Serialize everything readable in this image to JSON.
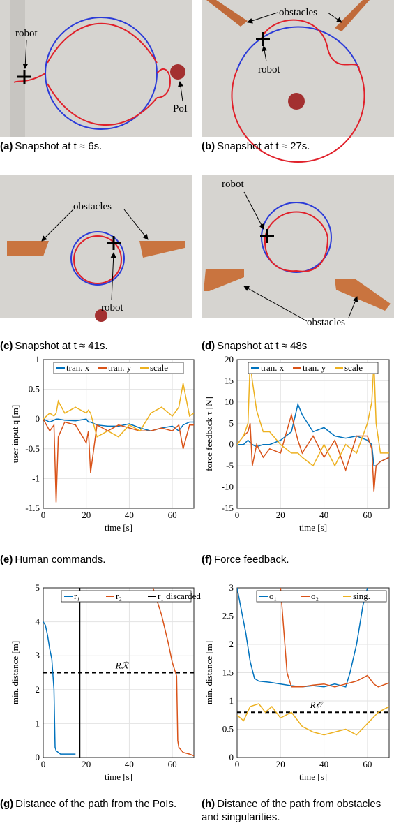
{
  "snapshots": [
    {
      "label": "(a)",
      "caption": "Snapshot at t ≈ 6s.",
      "annotations": [
        "robot",
        "PoI"
      ]
    },
    {
      "label": "(b)",
      "caption": "Snapshot at t ≈ 27s.",
      "annotations": [
        "obstacles",
        "robot"
      ]
    },
    {
      "label": "(c)",
      "caption": "Snapshot at t ≈ 41s.",
      "annotations": [
        "obstacles",
        "robot"
      ]
    },
    {
      "label": "(d)",
      "caption": "Snapshot at t ≈ 48s",
      "annotations": [
        "robot",
        "obstacles"
      ]
    }
  ],
  "chart_data": [
    {
      "type": "line",
      "label": "(e)",
      "caption": "Human commands.",
      "xlabel": "time [s]",
      "ylabel": "user input q [m]",
      "xlim": [
        0,
        70
      ],
      "xticks": [
        0,
        20,
        40,
        60
      ],
      "ylim": [
        -1.5,
        1
      ],
      "yticks": [
        -1.5,
        -1,
        -0.5,
        0,
        0.5,
        1
      ],
      "grid": true,
      "legend": "top",
      "x": [
        0,
        3,
        5,
        6,
        7,
        10,
        15,
        20,
        21,
        22,
        25,
        30,
        35,
        40,
        45,
        50,
        55,
        60,
        63,
        65,
        68,
        70
      ],
      "series": [
        {
          "name": "tran. x",
          "color": "#0072bd",
          "values": [
            0,
            -0.05,
            -0.02,
            0,
            0,
            -0.02,
            -0.03,
            0,
            -0.05,
            -0.05,
            -0.1,
            -0.12,
            -0.12,
            -0.08,
            -0.15,
            -0.2,
            -0.15,
            -0.12,
            -0.2,
            -0.1,
            -0.05,
            -0.05
          ]
        },
        {
          "name": "tran. y",
          "color": "#d95319",
          "values": [
            0,
            -0.2,
            -0.1,
            -1.4,
            -0.3,
            -0.05,
            -0.1,
            -0.4,
            -0.2,
            -0.9,
            -0.1,
            -0.2,
            -0.1,
            -0.15,
            -0.2,
            -0.2,
            -0.15,
            -0.2,
            -0.1,
            -0.5,
            -0.1,
            -0.1
          ]
        },
        {
          "name": "scale",
          "color": "#edb120",
          "values": [
            0,
            0.1,
            0.05,
            0.1,
            0.3,
            0.1,
            0.2,
            0.1,
            0.15,
            0.1,
            -0.3,
            -0.2,
            -0.3,
            -0.1,
            -0.2,
            0.1,
            0.2,
            0.05,
            0.2,
            0.6,
            0.05,
            0.1
          ]
        }
      ]
    },
    {
      "type": "line",
      "label": "(f)",
      "caption": "Force feedback.",
      "xlabel": "time [s]",
      "ylabel": "force feedback τ [N]",
      "xlim": [
        0,
        70
      ],
      "xticks": [
        0,
        20,
        40,
        60
      ],
      "ylim": [
        -15,
        20
      ],
      "yticks": [
        -15,
        -10,
        -5,
        0,
        5,
        10,
        15,
        20
      ],
      "grid": true,
      "legend": "top",
      "x": [
        0,
        3,
        5,
        6,
        7,
        9,
        12,
        15,
        20,
        25,
        28,
        30,
        35,
        40,
        45,
        50,
        55,
        60,
        62,
        63,
        64,
        66,
        70
      ],
      "series": [
        {
          "name": "tran. x",
          "color": "#0072bd",
          "values": [
            0,
            0,
            1,
            0.5,
            0,
            -0.5,
            0,
            0,
            1,
            3,
            9.5,
            7,
            3,
            4,
            2,
            1.5,
            2,
            1,
            0,
            -5,
            -5,
            -4,
            -3
          ]
        },
        {
          "name": "tran. y",
          "color": "#d95319",
          "values": [
            0,
            2,
            3,
            5,
            -5,
            0,
            -3,
            -1,
            -2,
            7,
            1,
            -2,
            2,
            -3,
            1,
            -6,
            2,
            2,
            -1,
            -11,
            -5,
            -4,
            -3
          ]
        },
        {
          "name": "scale",
          "color": "#edb120",
          "values": [
            0,
            2,
            5,
            19.5,
            15,
            8,
            3,
            3,
            0,
            -2,
            -2,
            -3,
            -5,
            0,
            -5,
            0,
            -2,
            5,
            10,
            19.5,
            5,
            -2,
            -2
          ]
        }
      ]
    },
    {
      "type": "line",
      "label": "(g)",
      "caption": "Distance of the path from the PoIs.",
      "xlabel": "time [s]",
      "ylabel": "min. distance [m]",
      "xlim": [
        0,
        70
      ],
      "xticks": [
        0,
        20,
        40,
        60
      ],
      "ylim": [
        0,
        5
      ],
      "yticks": [
        0,
        1,
        2,
        3,
        4,
        5
      ],
      "grid": true,
      "legend": "top-right",
      "hlines": [
        {
          "label": "Rℛ",
          "value": 2.5
        }
      ],
      "series": [
        {
          "name": "r₁",
          "color": "#0072bd",
          "x": [
            0,
            1,
            2,
            3,
            4,
            5,
            5.5,
            6,
            8,
            10,
            15
          ],
          "values": [
            4,
            3.9,
            3.6,
            3.2,
            2.9,
            2,
            0.3,
            0.2,
            0.1,
            0.1,
            0.1
          ]
        },
        {
          "name": "r₂",
          "color": "#d95319",
          "x": [
            51,
            55,
            58,
            60,
            61,
            62,
            62.5,
            63,
            65,
            68,
            70
          ],
          "values": [
            5,
            4.2,
            3.4,
            2.8,
            2.6,
            2.4,
            0.5,
            0.3,
            0.15,
            0.1,
            0.05
          ]
        },
        {
          "name": "r₁ discarded",
          "color": "#000000",
          "x": [
            17,
            17
          ],
          "values": [
            0,
            5
          ]
        }
      ]
    },
    {
      "type": "line",
      "label": "(h)",
      "caption": "Distance of the path from obstacles and singularities.",
      "xlabel": "time [s]",
      "ylabel": "min. distance [m]",
      "xlim": [
        0,
        70
      ],
      "xticks": [
        0,
        20,
        40,
        60
      ],
      "ylim": [
        0,
        3
      ],
      "yticks": [
        0,
        0.5,
        1,
        1.5,
        2,
        2.5,
        3
      ],
      "grid": true,
      "legend": "top-right",
      "hlines": [
        {
          "label": "R𝒪",
          "value": 0.8
        }
      ],
      "series": [
        {
          "name": "o₁",
          "color": "#0072bd",
          "x": [
            0,
            2,
            4,
            6,
            8,
            10,
            15,
            20,
            25,
            30,
            35,
            40,
            45,
            50,
            52,
            55,
            58,
            60
          ],
          "values": [
            3,
            2.6,
            2.2,
            1.7,
            1.4,
            1.35,
            1.33,
            1.3,
            1.27,
            1.25,
            1.27,
            1.25,
            1.3,
            1.25,
            1.5,
            2,
            2.7,
            3
          ]
        },
        {
          "name": "o₂",
          "color": "#d95319",
          "x": [
            20,
            21,
            22,
            23,
            25,
            30,
            35,
            40,
            45,
            50,
            55,
            60,
            63,
            65,
            70
          ],
          "values": [
            3,
            2.5,
            2,
            1.5,
            1.25,
            1.25,
            1.28,
            1.3,
            1.25,
            1.3,
            1.35,
            1.45,
            1.3,
            1.25,
            1.32
          ]
        },
        {
          "name": "sing.",
          "color": "#edb120",
          "x": [
            0,
            3,
            6,
            10,
            13,
            16,
            20,
            25,
            30,
            35,
            40,
            45,
            50,
            55,
            60,
            65,
            70
          ],
          "values": [
            0.75,
            0.65,
            0.9,
            0.95,
            0.8,
            0.9,
            0.7,
            0.8,
            0.55,
            0.45,
            0.4,
            0.45,
            0.5,
            0.4,
            0.6,
            0.8,
            0.9
          ]
        }
      ]
    }
  ]
}
